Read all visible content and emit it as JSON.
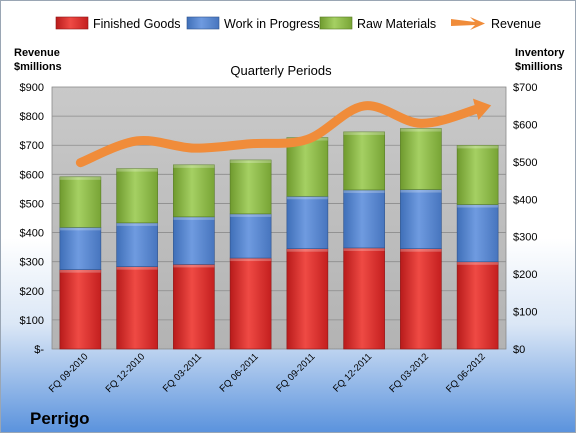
{
  "chart_data": {
    "type": "bar",
    "stacked": true,
    "title": "Quarterly Periods",
    "company": "Perrigo",
    "left_axis": {
      "label_line1": "Revenue",
      "label_line2": "$millions",
      "ylim": [
        0,
        900
      ],
      "ticks": [
        0,
        100,
        200,
        300,
        400,
        500,
        600,
        700,
        800,
        900
      ],
      "tick_labels": [
        "$-",
        "$100",
        "$200",
        "$300",
        "$400",
        "$500",
        "$600",
        "$700",
        "$800",
        "$900"
      ]
    },
    "right_axis": {
      "label_line1": "Inventory",
      "label_line2": "$millions",
      "ylim": [
        0,
        700
      ],
      "ticks": [
        0,
        100,
        200,
        300,
        400,
        500,
        600,
        700
      ],
      "tick_labels": [
        "$0",
        "$100",
        "$200",
        "$300",
        "$400",
        "$500",
        "$600",
        "$700"
      ]
    },
    "categories": [
      "FQ 09-2010",
      "FQ 12-2010",
      "FQ 03-2011",
      "FQ 06-2011",
      "FQ 09-2011",
      "FQ 12-2011",
      "FQ 03-2012",
      "FQ 06-2012"
    ],
    "series": [
      {
        "name": "Finished Goods",
        "axis": "right",
        "kind": "bar",
        "color": "#e8413c",
        "values": [
          212,
          220,
          226,
          243,
          268,
          270,
          268,
          233
        ]
      },
      {
        "name": "Work in Progress",
        "axis": "right",
        "kind": "bar",
        "color": "#5a8bd6",
        "values": [
          113,
          117,
          127,
          118,
          140,
          155,
          158,
          153
        ]
      },
      {
        "name": "Raw Materials",
        "axis": "right",
        "kind": "bar",
        "color": "#9bc75a",
        "values": [
          135,
          145,
          139,
          144,
          157,
          155,
          163,
          158
        ]
      },
      {
        "name": "Revenue",
        "axis": "left",
        "kind": "line",
        "color": "#f08c3a",
        "values": [
          640,
          715,
          690,
          705,
          720,
          835,
          775,
          825
        ]
      }
    ],
    "grid": true,
    "legend": "top"
  }
}
